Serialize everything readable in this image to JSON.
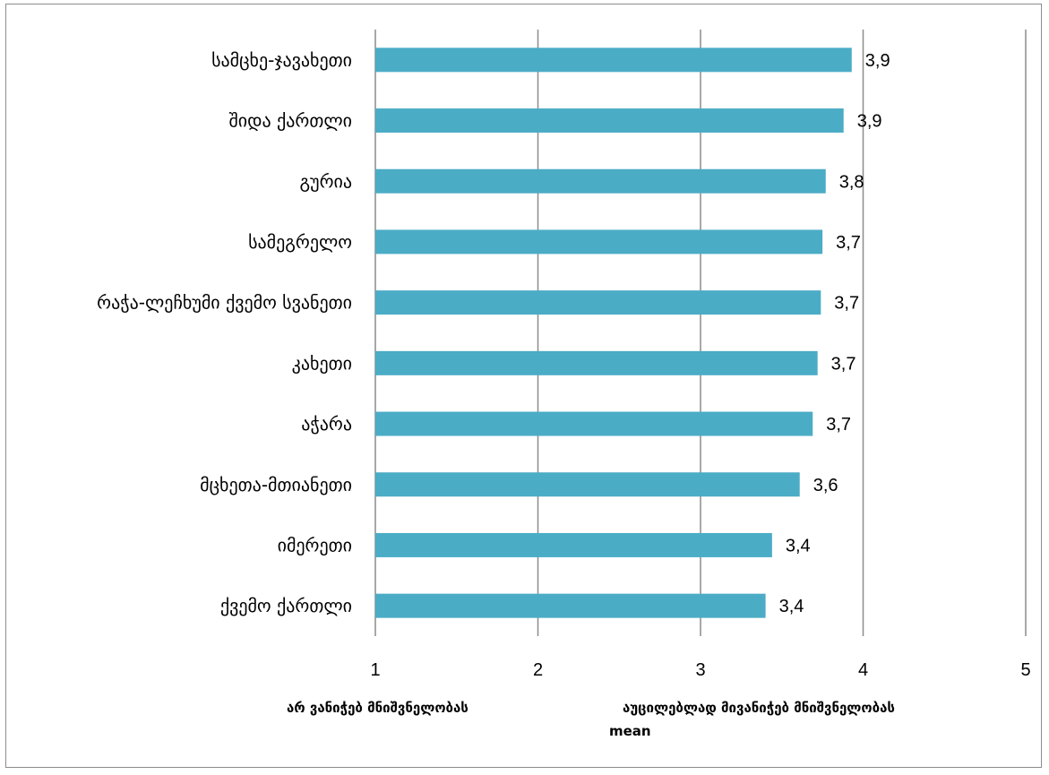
{
  "chart_data": {
    "type": "bar",
    "orientation": "horizontal",
    "categories": [
      "სამცხე-ჯავახეთი",
      "შიდა ქართლი",
      "გურია",
      "სამეგრელო",
      "რაჭა-ლეჩხუმი ქვემო სვანეთი",
      "კახეთი",
      "აჭარა",
      "მცხეთა-მთიანეთი",
      "იმერეთი",
      "ქვემო ქართლი"
    ],
    "values": [
      3.93,
      3.88,
      3.77,
      3.75,
      3.74,
      3.72,
      3.69,
      3.61,
      3.44,
      3.4
    ],
    "data_labels": [
      "3,9",
      "3,9",
      "3,8",
      "3,7",
      "3,7",
      "3,7",
      "3,7",
      "3,6",
      "3,4",
      "3,4"
    ],
    "xlim": [
      1,
      5
    ],
    "xticks": [
      "1",
      "2",
      "3",
      "4",
      "5"
    ],
    "grid": true,
    "bar_color": "#4bacc6",
    "scale_low_label": "არ ვანიჭებ მნიშვნელობას",
    "scale_high_label": "აუცილებლად მივანიჭებ მნიშვნელობას",
    "xlabel": "mean"
  }
}
